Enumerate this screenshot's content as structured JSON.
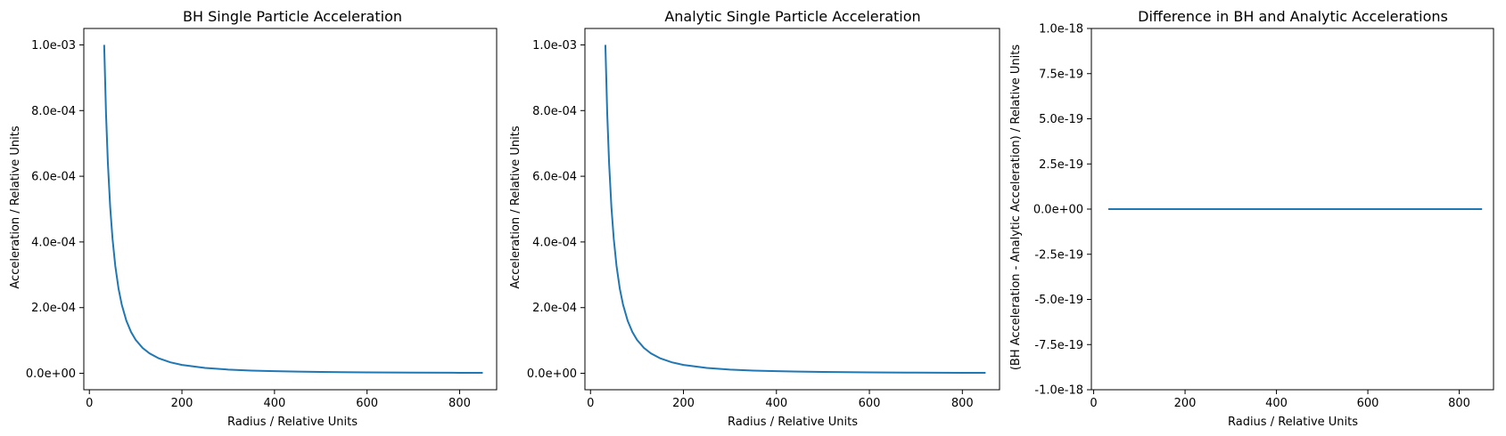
{
  "chart_data": [
    {
      "type": "line",
      "title": "BH Single Particle Acceleration",
      "xlabel": "Radius / Relative Units",
      "ylabel": "Acceleration /  Relative Units",
      "xlim": [
        -12,
        880
      ],
      "ylim": [
        -5e-05,
        0.00105
      ],
      "xticks": [
        0,
        200,
        400,
        600,
        800
      ],
      "xtick_labels": [
        "0",
        "200",
        "400",
        "600",
        "800"
      ],
      "yticks": [
        0,
        0.0002,
        0.0004,
        0.0006,
        0.0008,
        0.001
      ],
      "ytick_labels": [
        "0.0e+00",
        "2.0e-04",
        "4.0e-04",
        "6.0e-04",
        "8.0e-04",
        "1.0e-03"
      ],
      "grid": false,
      "series": [
        {
          "color": "#1f77b4",
          "x": [
            32,
            36,
            40,
            45,
            50,
            56,
            63,
            70,
            80,
            90,
            100,
            115,
            130,
            150,
            175,
            200,
            250,
            300,
            350,
            400,
            450,
            500,
            600,
            700,
            800,
            850
          ],
          "y": [
            0.001,
            0.00079,
            0.00064,
            0.000506,
            0.00041,
            0.000327,
            0.000258,
            0.000209,
            0.00016,
            0.000126,
            0.000102,
            7.74e-05,
            6.06e-05,
            4.55e-05,
            3.34e-05,
            2.56e-05,
            1.64e-05,
            1.14e-05,
            8.4e-06,
            6.4e-06,
            5.1e-06,
            4.1e-06,
            2.8e-06,
            2.1e-06,
            1.6e-06,
            1.4e-06
          ]
        }
      ]
    },
    {
      "type": "line",
      "title": "Analytic Single Particle Acceleration",
      "xlabel": "Radius / Relative Units",
      "ylabel": "Acceleration / Relative Units",
      "xlim": [
        -12,
        880
      ],
      "ylim": [
        -5e-05,
        0.00105
      ],
      "xticks": [
        0,
        200,
        400,
        600,
        800
      ],
      "xtick_labels": [
        "0",
        "200",
        "400",
        "600",
        "800"
      ],
      "yticks": [
        0,
        0.0002,
        0.0004,
        0.0006,
        0.0008,
        0.001
      ],
      "ytick_labels": [
        "0.0e+00",
        "2.0e-04",
        "4.0e-04",
        "6.0e-04",
        "8.0e-04",
        "1.0e-03"
      ],
      "grid": false,
      "series": [
        {
          "color": "#1f77b4",
          "x": [
            32,
            36,
            40,
            45,
            50,
            56,
            63,
            70,
            80,
            90,
            100,
            115,
            130,
            150,
            175,
            200,
            250,
            300,
            350,
            400,
            450,
            500,
            600,
            700,
            800,
            850
          ],
          "y": [
            0.001,
            0.00079,
            0.00064,
            0.000506,
            0.00041,
            0.000327,
            0.000258,
            0.000209,
            0.00016,
            0.000126,
            0.000102,
            7.74e-05,
            6.06e-05,
            4.55e-05,
            3.34e-05,
            2.56e-05,
            1.64e-05,
            1.14e-05,
            8.4e-06,
            6.4e-06,
            5.1e-06,
            4.1e-06,
            2.8e-06,
            2.1e-06,
            1.6e-06,
            1.4e-06
          ]
        }
      ]
    },
    {
      "type": "line",
      "title": "Difference in BH and Analytic Accelerations",
      "xlabel": "Radius / Relative Units",
      "ylabel": "(BH Acceleration - Analytic Acceleration) / Relative Units",
      "xlim": [
        -5,
        875
      ],
      "ylim": [
        -1e-18,
        1e-18
      ],
      "xticks": [
        0,
        200,
        400,
        600,
        800
      ],
      "xtick_labels": [
        "0",
        "200",
        "400",
        "600",
        "800"
      ],
      "yticks": [
        -1e-18,
        -7.5e-19,
        -5e-19,
        -2.5e-19,
        0,
        2.5e-19,
        5e-19,
        7.5e-19,
        1e-18
      ],
      "ytick_labels": [
        "-1.0e-18",
        "-7.5e-19",
        "-5.0e-19",
        "-2.5e-19",
        "0.0e+00",
        "2.5e-19",
        "5.0e-19",
        "7.5e-19",
        "1.0e-18"
      ],
      "grid": false,
      "series": [
        {
          "color": "#1f77b4",
          "x": [
            32,
            850
          ],
          "y": [
            0,
            0
          ]
        }
      ]
    }
  ]
}
